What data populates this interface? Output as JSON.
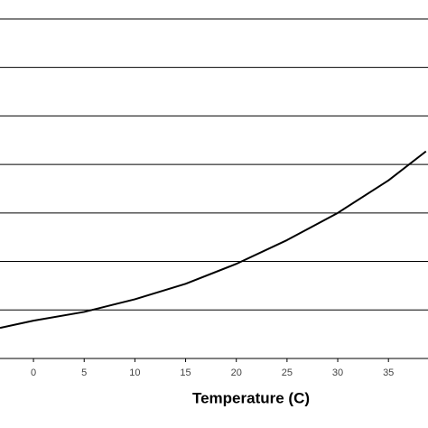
{
  "chart_data": {
    "type": "line",
    "x_label": "Temperature (C)",
    "x": [
      -3.3,
      0,
      5,
      10,
      15,
      20,
      25,
      30,
      35,
      38.7
    ],
    "series": [
      {
        "color": "#000000",
        "values": [
          0.63,
          0.78,
          0.96,
          1.22,
          1.54,
          1.95,
          2.44,
          3.0,
          3.67,
          4.27
        ]
      }
    ],
    "xlim": [
      -3.3,
      38.9
    ],
    "ylim": [
      0,
      7.39
    ],
    "xticks": [
      0,
      5,
      10,
      15,
      20,
      25,
      30,
      35
    ],
    "yticks": [
      1,
      2,
      3,
      4,
      5,
      6,
      7
    ],
    "grid": true
  }
}
